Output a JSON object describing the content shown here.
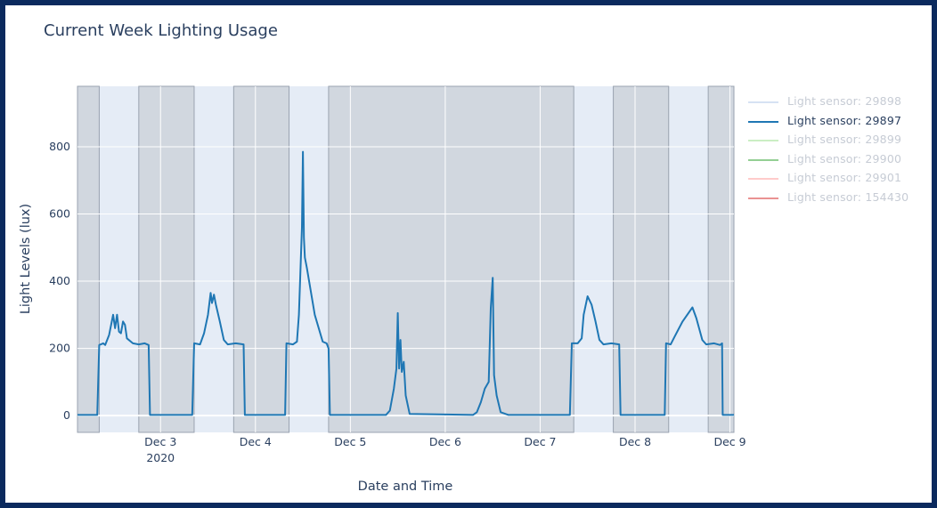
{
  "chart_data": {
    "type": "line",
    "title": "Current Week Lighting Usage",
    "xlabel": "Date and Time",
    "ylabel": "Light Levels (lux)",
    "ylim": [
      -50,
      980
    ],
    "y_ticks": [
      0,
      200,
      400,
      600,
      800
    ],
    "x_range": [
      "2020-12-02 03:00",
      "2020-12-09 01:00"
    ],
    "x_ticks": [
      {
        "t": "2020-12-03 00:00",
        "label": "Dec 3",
        "sublabel": "2020"
      },
      {
        "t": "2020-12-04 00:00",
        "label": "Dec 4"
      },
      {
        "t": "2020-12-05 00:00",
        "label": "Dec 5"
      },
      {
        "t": "2020-12-06 00:00",
        "label": "Dec 6"
      },
      {
        "t": "2020-12-07 00:00",
        "label": "Dec 7"
      },
      {
        "t": "2020-12-08 00:00",
        "label": "Dec 8"
      },
      {
        "t": "2020-12-09 00:00",
        "label": "Dec 9"
      }
    ],
    "shaded_periods": [
      [
        "2020-12-02 03:00",
        "2020-12-02 08:30"
      ],
      [
        "2020-12-02 18:30",
        "2020-12-03 08:30"
      ],
      [
        "2020-12-03 18:30",
        "2020-12-04 08:30"
      ],
      [
        "2020-12-04 18:30",
        "2020-12-07 08:30"
      ],
      [
        "2020-12-07 18:30",
        "2020-12-08 08:30"
      ],
      [
        "2020-12-08 18:30",
        "2020-12-09 01:00"
      ]
    ],
    "legend_position": "right",
    "series": [
      {
        "name": "Light sensor: 29898",
        "color": "#aec7e8",
        "visible": false,
        "points": []
      },
      {
        "name": "Light sensor: 29897",
        "color": "#1f77b4",
        "visible": true,
        "points": [
          [
            "2020-12-02 03:00",
            2
          ],
          [
            "2020-12-02 08:00",
            2
          ],
          [
            "2020-12-02 08:30",
            210
          ],
          [
            "2020-12-02 09:30",
            215
          ],
          [
            "2020-12-02 10:00",
            210
          ],
          [
            "2020-12-02 11:00",
            240
          ],
          [
            "2020-12-02 12:00",
            300
          ],
          [
            "2020-12-02 12:30",
            260
          ],
          [
            "2020-12-02 13:00",
            300
          ],
          [
            "2020-12-02 13:30",
            250
          ],
          [
            "2020-12-02 14:00",
            245
          ],
          [
            "2020-12-02 14:30",
            280
          ],
          [
            "2020-12-02 15:00",
            270
          ],
          [
            "2020-12-02 15:30",
            230
          ],
          [
            "2020-12-02 17:00",
            215
          ],
          [
            "2020-12-02 18:30",
            212
          ],
          [
            "2020-12-02 20:00",
            215
          ],
          [
            "2020-12-02 21:00",
            210
          ],
          [
            "2020-12-02 21:20",
            2
          ],
          [
            "2020-12-03 08:00",
            2
          ],
          [
            "2020-12-03 08:30",
            215
          ],
          [
            "2020-12-03 10:00",
            212
          ],
          [
            "2020-12-03 11:00",
            245
          ],
          [
            "2020-12-03 12:00",
            300
          ],
          [
            "2020-12-03 12:40",
            365
          ],
          [
            "2020-12-03 13:00",
            335
          ],
          [
            "2020-12-03 13:30",
            360
          ],
          [
            "2020-12-03 14:00",
            330
          ],
          [
            "2020-12-03 15:00",
            280
          ],
          [
            "2020-12-03 16:00",
            225
          ],
          [
            "2020-12-03 17:00",
            212
          ],
          [
            "2020-12-03 19:00",
            215
          ],
          [
            "2020-12-03 21:00",
            212
          ],
          [
            "2020-12-03 21:20",
            2
          ],
          [
            "2020-12-04 07:30",
            2
          ],
          [
            "2020-12-04 07:50",
            215
          ],
          [
            "2020-12-04 09:30",
            212
          ],
          [
            "2020-12-04 10:30",
            220
          ],
          [
            "2020-12-04 11:00",
            300
          ],
          [
            "2020-12-04 11:45",
            560
          ],
          [
            "2020-12-04 12:00",
            785
          ],
          [
            "2020-12-04 12:15",
            530
          ],
          [
            "2020-12-04 12:30",
            470
          ],
          [
            "2020-12-04 13:00",
            440
          ],
          [
            "2020-12-04 15:00",
            300
          ],
          [
            "2020-12-04 17:00",
            220
          ],
          [
            "2020-12-04 18:00",
            215
          ],
          [
            "2020-12-04 18:30",
            200
          ],
          [
            "2020-12-04 18:50",
            2
          ],
          [
            "2020-12-05 09:00",
            2
          ],
          [
            "2020-12-05 10:00",
            15
          ],
          [
            "2020-12-05 11:00",
            80
          ],
          [
            "2020-12-05 11:40",
            140
          ],
          [
            "2020-12-05 12:00",
            305
          ],
          [
            "2020-12-05 12:20",
            140
          ],
          [
            "2020-12-05 12:40",
            225
          ],
          [
            "2020-12-05 13:00",
            130
          ],
          [
            "2020-12-05 13:30",
            160
          ],
          [
            "2020-12-05 14:00",
            60
          ],
          [
            "2020-12-05 15:00",
            5
          ],
          [
            "2020-12-06 07:00",
            2
          ],
          [
            "2020-12-06 08:00",
            10
          ],
          [
            "2020-12-06 09:00",
            40
          ],
          [
            "2020-12-06 10:00",
            80
          ],
          [
            "2020-12-06 11:00",
            100
          ],
          [
            "2020-12-06 11:30",
            320
          ],
          [
            "2020-12-06 12:00",
            410
          ],
          [
            "2020-12-06 12:20",
            120
          ],
          [
            "2020-12-06 13:00",
            60
          ],
          [
            "2020-12-06 14:00",
            10
          ],
          [
            "2020-12-06 16:00",
            2
          ],
          [
            "2020-12-07 07:30",
            2
          ],
          [
            "2020-12-07 08:00",
            215
          ],
          [
            "2020-12-07 09:30",
            215
          ],
          [
            "2020-12-07 10:30",
            230
          ],
          [
            "2020-12-07 11:00",
            300
          ],
          [
            "2020-12-07 12:00",
            355
          ],
          [
            "2020-12-07 13:00",
            330
          ],
          [
            "2020-12-07 14:00",
            280
          ],
          [
            "2020-12-07 15:00",
            225
          ],
          [
            "2020-12-07 16:00",
            212
          ],
          [
            "2020-12-07 18:00",
            215
          ],
          [
            "2020-12-07 20:00",
            212
          ],
          [
            "2020-12-07 20:20",
            2
          ],
          [
            "2020-12-08 07:30",
            2
          ],
          [
            "2020-12-08 07:50",
            215
          ],
          [
            "2020-12-08 09:00",
            212
          ],
          [
            "2020-12-08 10:00",
            235
          ],
          [
            "2020-12-08 12:00",
            280
          ],
          [
            "2020-12-08 14:30",
            322
          ],
          [
            "2020-12-08 15:30",
            290
          ],
          [
            "2020-12-08 17:00",
            225
          ],
          [
            "2020-12-08 18:00",
            212
          ],
          [
            "2020-12-08 20:00",
            215
          ],
          [
            "2020-12-08 21:30",
            210
          ],
          [
            "2020-12-08 22:00",
            215
          ],
          [
            "2020-12-08 22:10",
            2
          ],
          [
            "2020-12-09 01:00",
            2
          ]
        ]
      },
      {
        "name": "Light sensor: 29899",
        "color": "#98df8a",
        "visible": false,
        "points": []
      },
      {
        "name": "Light sensor: 29900",
        "color": "#2ca02c",
        "visible": false,
        "points": []
      },
      {
        "name": "Light sensor: 29901",
        "color": "#ff9896",
        "visible": false,
        "points": []
      },
      {
        "name": "Light sensor: 154430",
        "color": "#d62728",
        "visible": false,
        "points": []
      }
    ]
  }
}
